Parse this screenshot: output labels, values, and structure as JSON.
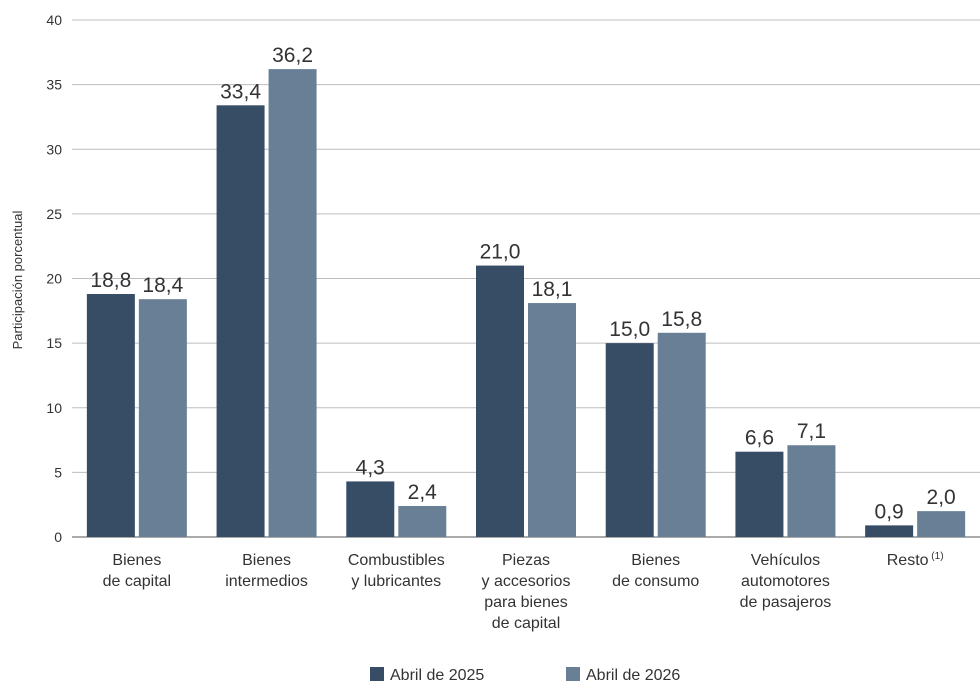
{
  "chart_data": {
    "type": "bar",
    "ylabel": "Participación porcentual",
    "ylim": [
      0,
      40
    ],
    "yticks": [
      0,
      5,
      10,
      15,
      20,
      25,
      30,
      35,
      40
    ],
    "grid": true,
    "legend_position": "bottom",
    "categories": [
      [
        "Bienes",
        "de capital"
      ],
      [
        "Bienes",
        "intermedios"
      ],
      [
        "Combustibles",
        "y lubricantes"
      ],
      [
        "Piezas",
        "y accesorios",
        "para bienes",
        "de capital"
      ],
      [
        "Bienes",
        "de consumo"
      ],
      [
        "Vehículos",
        "automotores",
        "de pasajeros"
      ],
      [
        "Resto"
      ]
    ],
    "category_note": [
      "",
      "",
      "",
      "",
      "",
      "",
      "(1)"
    ],
    "series": [
      {
        "name": "Abril de 2025",
        "color": "#374d66",
        "values": [
          18.8,
          33.4,
          4.3,
          21.0,
          15.0,
          6.6,
          0.9
        ],
        "labels": [
          "18,8",
          "33,4",
          "4,3",
          "21,0",
          "15,0",
          "6,6",
          "0,9"
        ]
      },
      {
        "name": "Abril de 2026",
        "color": "#687f96",
        "values": [
          18.4,
          36.2,
          2.4,
          18.1,
          15.8,
          7.1,
          2.0
        ],
        "labels": [
          "18,4",
          "36,2",
          "2,4",
          "18,1",
          "15,8",
          "7,1",
          "2,0"
        ]
      }
    ]
  }
}
